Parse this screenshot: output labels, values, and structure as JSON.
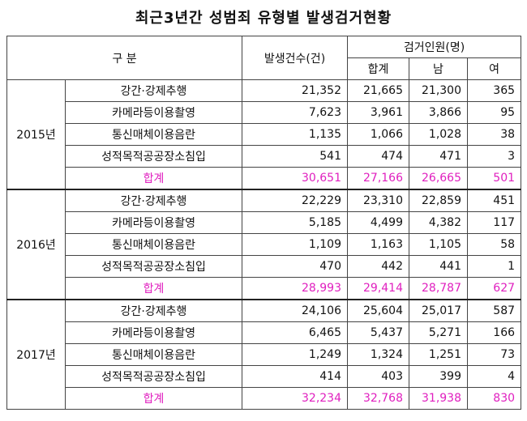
{
  "title": "최근3년간 성범죄 유형별 발생검거현황",
  "header": {
    "category": "구  분",
    "occurrences": "발생건수(건)",
    "arrests": "검거인원(명)",
    "total": "합계",
    "male": "남",
    "female": "여"
  },
  "years": [
    {
      "year": "2015년",
      "rows": [
        {
          "type": "강간·강제추행",
          "occ": "21,352",
          "total": "21,665",
          "male": "21,300",
          "female": "365"
        },
        {
          "type": "카메라등이용촬영",
          "occ": "7,623",
          "total": "3,961",
          "male": "3,866",
          "female": "95"
        },
        {
          "type": "통신매체이용음란",
          "occ": "1,135",
          "total": "1,066",
          "male": "1,028",
          "female": "38"
        },
        {
          "type": "성적목적공공장소침입",
          "occ": "541",
          "total": "474",
          "male": "471",
          "female": "3"
        }
      ],
      "sum": {
        "label": "합계",
        "occ": "30,651",
        "total": "27,166",
        "male": "26,665",
        "female": "501"
      }
    },
    {
      "year": "2016년",
      "rows": [
        {
          "type": "강간·강제추행",
          "occ": "22,229",
          "total": "23,310",
          "male": "22,859",
          "female": "451"
        },
        {
          "type": "카메라등이용촬영",
          "occ": "5,185",
          "total": "4,499",
          "male": "4,382",
          "female": "117"
        },
        {
          "type": "통신매체이용음란",
          "occ": "1,109",
          "total": "1,163",
          "male": "1,105",
          "female": "58"
        },
        {
          "type": "성적목적공공장소침입",
          "occ": "470",
          "total": "442",
          "male": "441",
          "female": "1"
        }
      ],
      "sum": {
        "label": "합계",
        "occ": "28,993",
        "total": "29,414",
        "male": "28,787",
        "female": "627"
      }
    },
    {
      "year": "2017년",
      "rows": [
        {
          "type": "강간·강제추행",
          "occ": "24,106",
          "total": "25,604",
          "male": "25,017",
          "female": "587"
        },
        {
          "type": "카메라등이용촬영",
          "occ": "6,465",
          "total": "5,437",
          "male": "5,271",
          "female": "166"
        },
        {
          "type": "통신매체이용음란",
          "occ": "1,249",
          "total": "1,324",
          "male": "1,251",
          "female": "73"
        },
        {
          "type": "성적목적공공장소침입",
          "occ": "414",
          "total": "403",
          "male": "399",
          "female": "4"
        }
      ],
      "sum": {
        "label": "합계",
        "occ": "32,234",
        "total": "32,768",
        "male": "31,938",
        "female": "830"
      }
    }
  ],
  "colors": {
    "total_row": "#e01fbf",
    "border": "#444444"
  }
}
